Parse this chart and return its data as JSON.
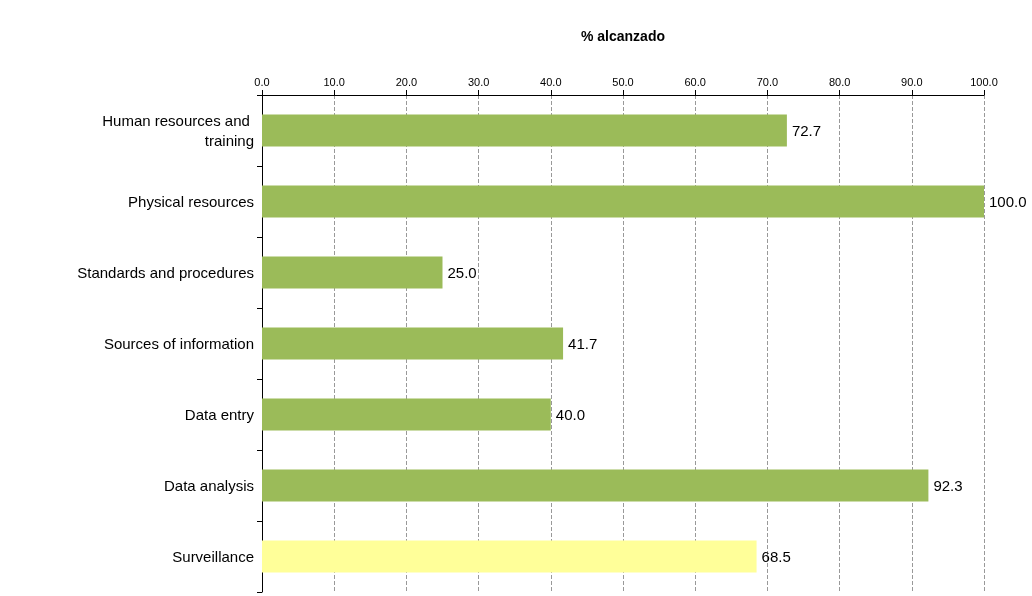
{
  "chart_data": {
    "type": "bar",
    "orientation": "horizontal",
    "xlabel": "% alcanzado",
    "categories": [
      "Human resources and training",
      "Physical resources",
      "Standards and procedures",
      "Sources of information",
      "Data entry",
      "Data analysis",
      "Surveillance"
    ],
    "values": [
      72.7,
      100,
      25,
      41.7,
      40,
      92.3,
      68.5
    ],
    "colors": [
      "#9bbb59",
      "#9bbb59",
      "#9bbb59",
      "#9bbb59",
      "#9bbb59",
      "#9bbb59",
      "#ffff99"
    ],
    "value_labels": [
      "72.7",
      "100.0",
      "25.0",
      "41.7",
      "40.0",
      "92.3",
      "68.5"
    ],
    "xlim": [
      0,
      100
    ],
    "xticks": [
      {
        "value": 0,
        "label": "0.0"
      },
      {
        "value": 10,
        "label": "10.0"
      },
      {
        "value": 20,
        "label": "20.0"
      },
      {
        "value": 30,
        "label": "30.0"
      },
      {
        "value": 40,
        "label": "40.0"
      },
      {
        "value": 50,
        "label": "50.0"
      },
      {
        "value": 60,
        "label": "60.0"
      },
      {
        "value": 70,
        "label": "70.0"
      },
      {
        "value": 80,
        "label": "80.0"
      },
      {
        "value": 90,
        "label": "90.0"
      },
      {
        "value": 100,
        "label": "100.0"
      }
    ],
    "grid": "x"
  }
}
